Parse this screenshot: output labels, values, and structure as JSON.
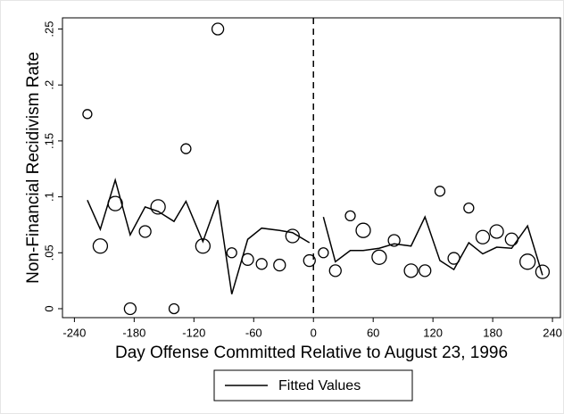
{
  "chart_data": {
    "type": "scatter",
    "x_label": "Day Offense Committed Relative to August 23, 1996",
    "y_label": "Non-Financial Recidivism Rate",
    "x": [
      -227,
      -214,
      -199,
      -184,
      -169,
      -156,
      -140,
      -128,
      -111,
      -96,
      -82,
      -66,
      -52,
      -34,
      -21,
      -4,
      10,
      22,
      37,
      50,
      66,
      81,
      98,
      112,
      127,
      141,
      156,
      170,
      184,
      199,
      215,
      230
    ],
    "series": [
      {
        "type": "scatter",
        "color": "#000000",
        "values": [
          0.174,
          0.056,
          0.094,
          0.0,
          0.069,
          0.091,
          0.0,
          0.143,
          0.056,
          0.25,
          0.05,
          0.044,
          0.04,
          0.039,
          0.065,
          0.043,
          0.05,
          0.034,
          0.083,
          0.07,
          0.046,
          0.061,
          0.034,
          0.034,
          0.105,
          0.045,
          0.09,
          0.064,
          0.069,
          0.062,
          0.042,
          0.033
        ],
        "sizes": [
          5,
          8,
          8,
          6.5,
          6.5,
          8,
          5.5,
          5.5,
          8,
          6.5,
          5.5,
          6.5,
          6,
          6.5,
          7.5,
          6.5,
          5.5,
          6.5,
          5.5,
          8,
          8,
          6.5,
          7.5,
          6.5,
          5.5,
          6.5,
          5.5,
          7.5,
          7.5,
          7,
          8.5,
          7.5
        ]
      },
      {
        "type": "line",
        "name": "Fitted Values",
        "color": "#000000",
        "values": [
          0.097,
          0.071,
          0.115,
          0.066,
          0.091,
          0.087,
          0.078,
          0.096,
          0.06,
          0.097,
          0.013,
          0.062,
          0.072,
          0.07,
          0.068,
          0.059,
          0.082,
          0.042,
          0.052,
          0.052,
          0.054,
          0.058,
          0.056,
          0.082,
          0.043,
          0.035,
          0.059,
          0.049,
          0.055,
          0.054,
          0.074,
          0.03
        ]
      }
    ],
    "xlim": [
      -252,
      248
    ],
    "ylim": [
      -0.008,
      0.26
    ],
    "xticks": [
      -240,
      -180,
      -120,
      -60,
      0,
      60,
      120,
      180,
      240
    ],
    "yticks": [
      0,
      {
        "value": 0.05,
        "label": ".05"
      },
      {
        "value": 0.1,
        "label": ".1"
      },
      {
        "value": 0.15,
        "label": ".15"
      },
      {
        "value": 0.2,
        "label": ".2"
      },
      {
        "value": 0.25,
        "label": ".25"
      }
    ],
    "xline": 0,
    "grid": false,
    "legend": "bottom"
  }
}
